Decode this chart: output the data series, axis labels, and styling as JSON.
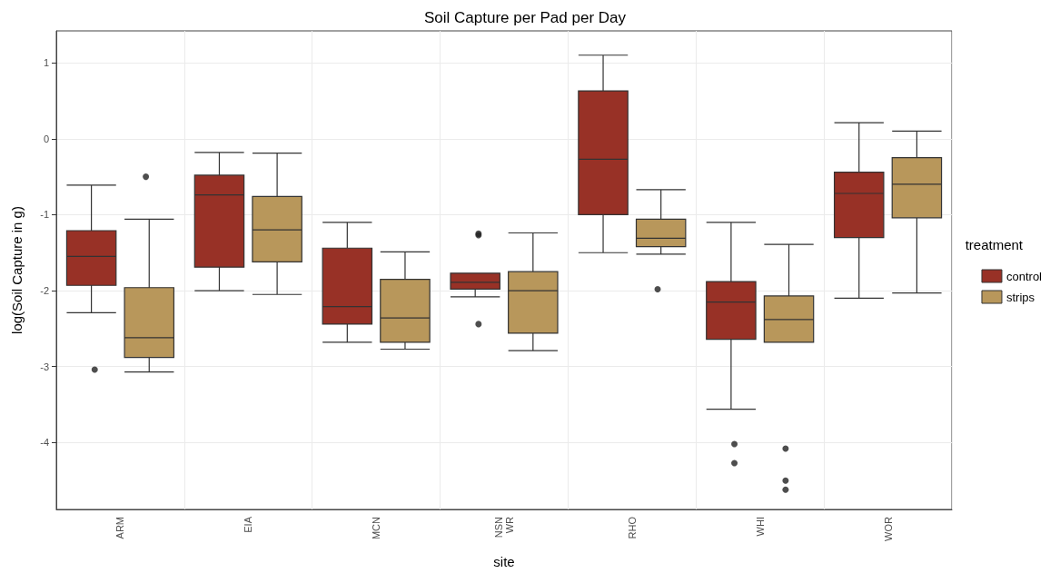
{
  "chart_data": {
    "type": "box",
    "title": "Soil Capture per Pad per Day",
    "xlabel": "site",
    "ylabel": "log(Soil Capture in g)",
    "legend_title": "treatment",
    "categories": [
      "ARM",
      "EIA",
      "MCN",
      "NSN\nWR",
      "RHO",
      "WHI",
      "WOR"
    ],
    "ylim": [
      -4.88,
      1.42
    ],
    "yticks": [
      -4,
      -3,
      -2,
      -1,
      0,
      1
    ],
    "grid": true,
    "legend": "right",
    "series": [
      {
        "name": "control",
        "color": "#983126",
        "boxes": [
          {
            "low": -2.29,
            "q1": -1.93,
            "median": -1.55,
            "q3": -1.21,
            "high": -0.61,
            "outliers": [
              -3.04
            ]
          },
          {
            "low": -2.0,
            "q1": -1.69,
            "median": -0.74,
            "q3": -0.48,
            "high": -0.18
          },
          {
            "low": -2.68,
            "q1": -2.44,
            "median": -2.21,
            "q3": -1.44,
            "high": -1.1
          },
          {
            "low": -2.08,
            "q1": -1.98,
            "median": -1.89,
            "q3": -1.77,
            "high": -1.77,
            "outliers": [
              -1.25,
              -1.27,
              -2.44
            ]
          },
          {
            "low": -1.5,
            "q1": -1.0,
            "median": -0.27,
            "q3": 0.63,
            "high": 1.1
          },
          {
            "low": -3.56,
            "q1": -2.64,
            "median": -2.15,
            "q3": -1.88,
            "high": -1.1,
            "outliers": [
              -4.02,
              -4.27
            ]
          },
          {
            "low": -2.1,
            "q1": -1.3,
            "median": -0.72,
            "q3": -0.44,
            "high": 0.21
          }
        ]
      },
      {
        "name": "strips",
        "color": "#b8975b",
        "boxes": [
          {
            "low": -3.07,
            "q1": -2.88,
            "median": -2.62,
            "q3": -1.96,
            "high": -1.06,
            "outliers": [
              -0.5
            ]
          },
          {
            "low": -2.05,
            "q1": -1.62,
            "median": -1.2,
            "q3": -0.76,
            "high": -0.19
          },
          {
            "low": -2.77,
            "q1": -2.68,
            "median": -2.36,
            "q3": -1.85,
            "high": -1.49
          },
          {
            "low": -2.79,
            "q1": -2.56,
            "median": -2.0,
            "q3": -1.75,
            "high": -1.24
          },
          {
            "low": -1.52,
            "q1": -1.42,
            "median": -1.31,
            "q3": -1.06,
            "high": -0.67,
            "outliers": [
              -1.98
            ]
          },
          {
            "low": -2.68,
            "q1": -2.68,
            "median": -2.38,
            "q3": -2.07,
            "high": -1.39,
            "outliers": [
              -4.08,
              -4.5,
              -4.62
            ]
          },
          {
            "low": -2.03,
            "q1": -1.04,
            "median": -0.6,
            "q3": -0.25,
            "high": 0.1
          }
        ]
      }
    ]
  }
}
